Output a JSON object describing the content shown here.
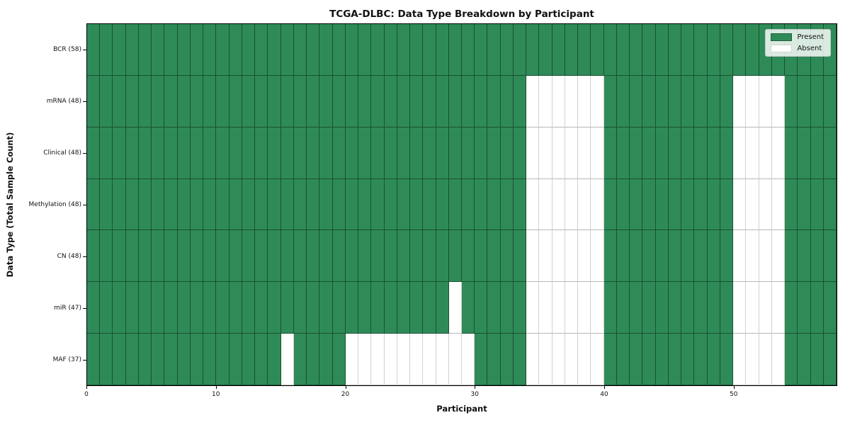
{
  "figure": {
    "title": "TCGA-DLBC: Data Type Breakdown by Participant",
    "xlabel": "Participant",
    "ylabel": "Data Type (Total Sample Count)"
  },
  "colors": {
    "present": "#2e8b57",
    "absent": "#ffffff",
    "present_swatch_border": "#20603c",
    "absent_swatch_border": "#d4d4d4",
    "spine": "#000000"
  },
  "chart_data": {
    "type": "heatmap",
    "title": "TCGA-DLBC: Data Type Breakdown by Participant",
    "xlabel": "Participant",
    "ylabel": "Data Type (Total Sample Count)",
    "x_range": [
      0,
      58
    ],
    "n_participants": 58,
    "xticks": [
      0,
      10,
      20,
      30,
      40,
      50
    ],
    "grid": true,
    "legend_position": "upper right",
    "value_encoding": {
      "present": 1,
      "absent": 0
    },
    "legend": [
      {
        "label": "Present",
        "color": "#2e8b57"
      },
      {
        "label": "Absent",
        "color": "#ffffff"
      }
    ],
    "rows": [
      {
        "label": "BCR (58)",
        "data_type": "BCR",
        "present_count": 58,
        "absent_columns": []
      },
      {
        "label": "mRNA (48)",
        "data_type": "mRNA",
        "present_count": 48,
        "absent_columns": [
          34,
          35,
          36,
          37,
          38,
          39,
          50,
          51,
          52,
          53
        ]
      },
      {
        "label": "Clinical (48)",
        "data_type": "Clinical",
        "present_count": 48,
        "absent_columns": [
          34,
          35,
          36,
          37,
          38,
          39,
          50,
          51,
          52,
          53
        ]
      },
      {
        "label": "Methylation (48)",
        "data_type": "Methylation",
        "present_count": 48,
        "absent_columns": [
          34,
          35,
          36,
          37,
          38,
          39,
          50,
          51,
          52,
          53
        ]
      },
      {
        "label": "CN (48)",
        "data_type": "CN",
        "present_count": 48,
        "absent_columns": [
          34,
          35,
          36,
          37,
          38,
          39,
          50,
          51,
          52,
          53
        ]
      },
      {
        "label": "miR (47)",
        "data_type": "miR",
        "present_count": 47,
        "absent_columns": [
          28,
          34,
          35,
          36,
          37,
          38,
          39,
          50,
          51,
          52,
          53
        ]
      },
      {
        "label": "MAF (37)",
        "data_type": "MAF",
        "present_count": 37,
        "absent_columns": [
          15,
          20,
          21,
          22,
          23,
          24,
          25,
          26,
          27,
          28,
          29,
          34,
          35,
          36,
          37,
          38,
          39,
          50,
          51,
          52,
          53
        ]
      }
    ]
  }
}
